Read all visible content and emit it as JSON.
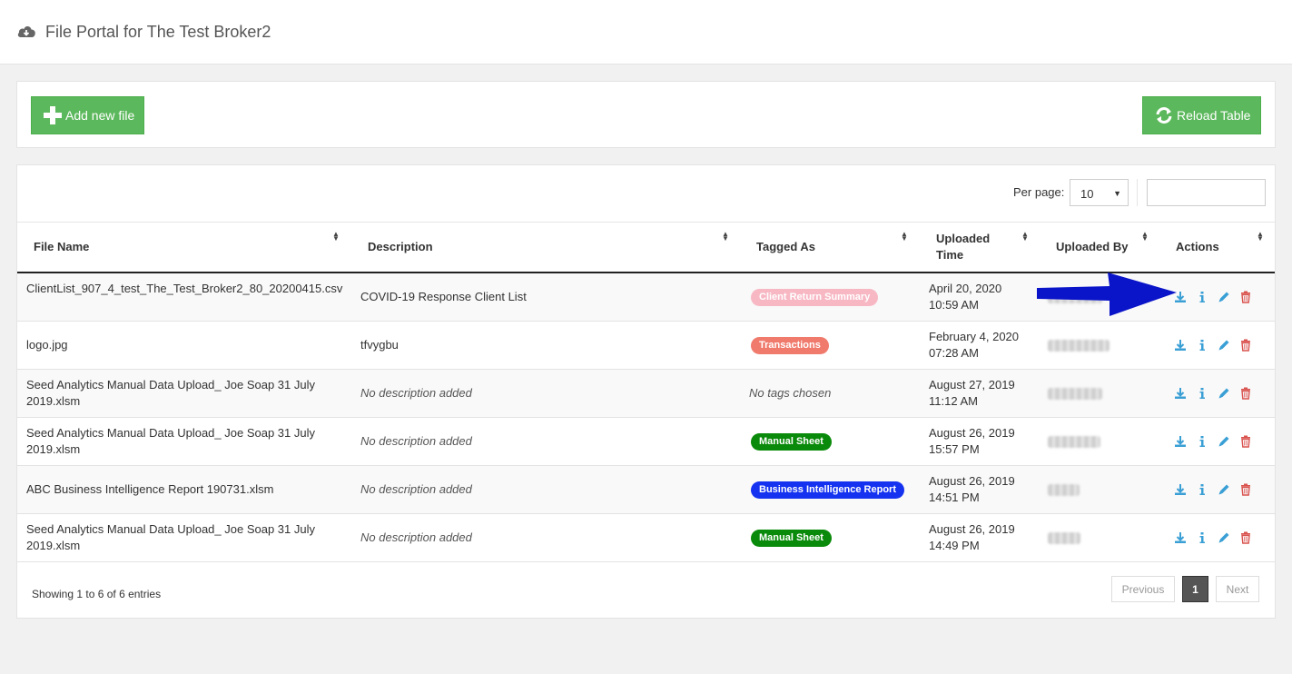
{
  "header": {
    "title": "File Portal for The Test Broker2",
    "icon": "cloud-download-icon"
  },
  "toolbar": {
    "add_label": "Add new file",
    "reload_label": "Reload Table"
  },
  "table_controls": {
    "per_page_label": "Per page:",
    "per_page_value": "10",
    "search_value": ""
  },
  "columns": [
    "File Name",
    "Description",
    "Tagged As",
    "Uploaded\nTime",
    "Uploaded By",
    "Actions"
  ],
  "rows": [
    {
      "name": "ClientList_907_4_test_The_Test_Broker2_80_20200415.csv",
      "description": "COVID-19 Response Client List",
      "tag": "Client Return Summary",
      "tag_color": "#f7b8c4",
      "date": "April 20, 2020",
      "time": "10:59 AM"
    },
    {
      "name": "logo.jpg",
      "description": "tfvygbu",
      "tag": "Transactions",
      "tag_color": "#f07a6c",
      "date": "February 4, 2020",
      "time": "07:28 AM"
    },
    {
      "name": "Seed Analytics Manual Data Upload_ Joe Soap 31 July 2019.xlsm",
      "description": "No description added",
      "tag": "No tags chosen",
      "tag_color": "",
      "date": "August 27, 2019",
      "time": "11:12 AM"
    },
    {
      "name": "Seed Analytics Manual Data Upload_ Joe Soap 31 July 2019.xlsm",
      "description": "No description added",
      "tag": "Manual Sheet",
      "tag_color": "#0a8a0a",
      "date": "August 26, 2019",
      "time": "15:57 PM"
    },
    {
      "name": "ABC Business Intelligence Report 190731.xlsm",
      "description": "No description added",
      "tag": "Business Intelligence Report",
      "tag_color": "#1432f0",
      "date": "August 26, 2019",
      "time": "14:51 PM"
    },
    {
      "name": "Seed Analytics Manual Data Upload_ Joe Soap 31 July 2019.xlsm",
      "description": "No description added",
      "tag": "Manual Sheet",
      "tag_color": "#0a8a0a",
      "date": "August 26, 2019",
      "time": "14:49 PM"
    }
  ],
  "footer": {
    "showing": "Showing 1 to 6 of 6 entries",
    "prev": "Previous",
    "page": "1",
    "next": "Next"
  },
  "colors": {
    "green": "#5cb85c",
    "action_blue": "#3a9fd5",
    "delete_red": "#d9534f",
    "arrow_blue": "#0a14c8"
  }
}
